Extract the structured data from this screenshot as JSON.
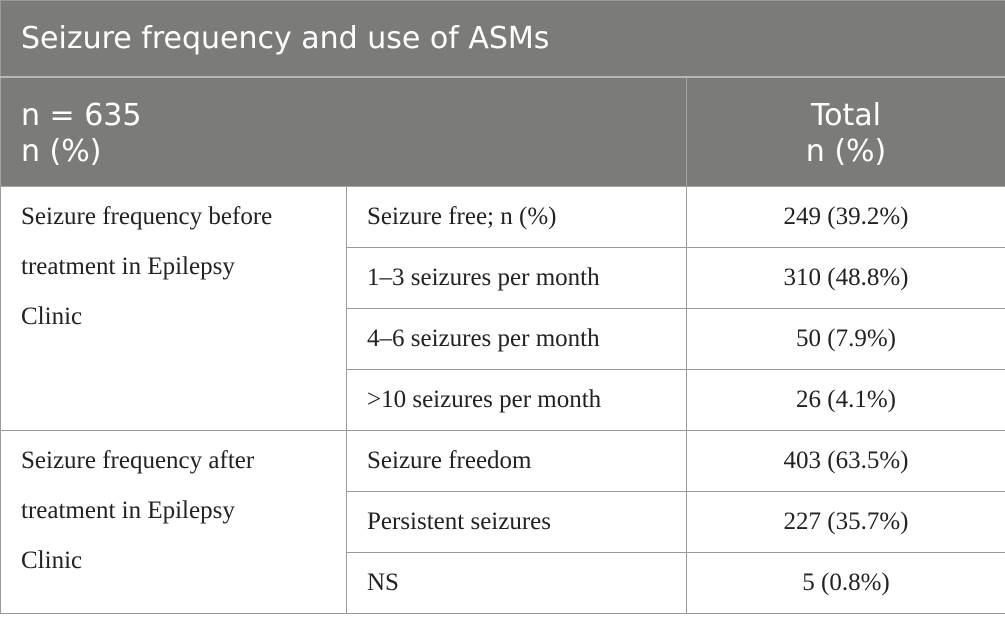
{
  "table": {
    "title": "Seizure frequency and use of ASMs",
    "header": {
      "left_line1": "n = 635",
      "left_line2": "n (%)",
      "right_line1": "Total",
      "right_line2": "n (%)"
    },
    "groups": [
      {
        "label_lines": [
          "Seizure frequency before",
          "treatment in Epilepsy",
          "Clinic"
        ],
        "rows": [
          {
            "category": "Seizure free; n (%)",
            "total": "249 (39.2%)"
          },
          {
            "category": "1–3 seizures per month",
            "total": "310 (48.8%)"
          },
          {
            "category": "4–6 seizures per month",
            "total": "50 (7.9%)"
          },
          {
            "category": ">10 seizures per month",
            "total": "26 (4.1%)"
          }
        ]
      },
      {
        "label_lines": [
          "Seizure frequency after",
          "treatment in Epilepsy",
          "Clinic"
        ],
        "rows": [
          {
            "category": "Seizure freedom",
            "total": "403 (63.5%)"
          },
          {
            "category": "Persistent seizures",
            "total": "227 (35.7%)"
          },
          {
            "category": "NS",
            "total": "5 (0.8%)"
          }
        ]
      }
    ]
  },
  "colors": {
    "header_bg": "#7b7b79",
    "header_text": "#ffffff",
    "border": "#9a9a9a",
    "body_text": "#222222"
  }
}
